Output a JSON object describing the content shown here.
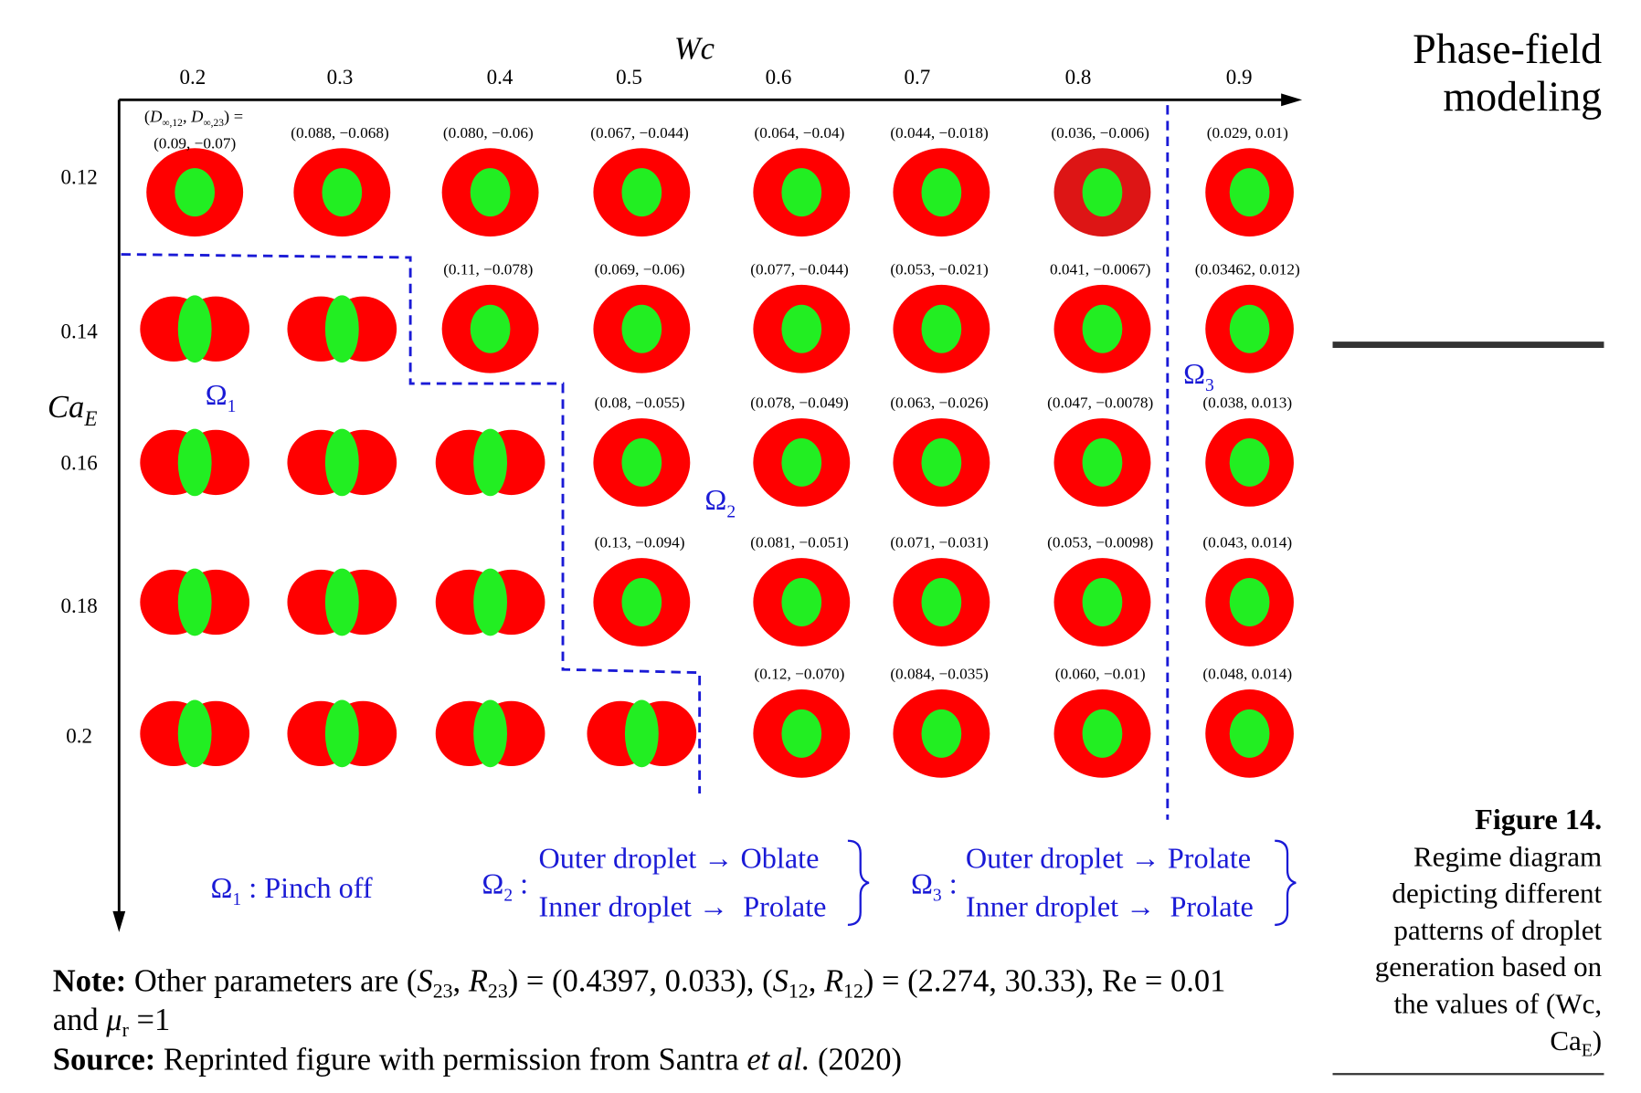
{
  "header": {
    "lines": [
      "Phase-field",
      "modeling"
    ]
  },
  "figure": {
    "x_label": "Wc",
    "y_label": {
      "main": "Ca",
      "sub": "E"
    },
    "x_ticks": [
      0.2,
      0.3,
      0.4,
      0.5,
      0.6,
      0.7,
      0.8,
      0.9
    ],
    "y_ticks": [
      0.12,
      0.14,
      0.16,
      0.18,
      0.2
    ],
    "coeff_header": [
      "(",
      "D",
      "∞,12",
      ", ",
      "D",
      "∞,23",
      ") ="
    ],
    "cells": [
      [
        "(0.09, −0.07)",
        "(0.088, −0.068)",
        "(0.080, −0.06)",
        "(0.067, −0.044)",
        "(0.064, −0.04)",
        "(0.044, −0.018)",
        "(0.036, −0.006)",
        "(0.029, 0.01)"
      ],
      [
        null,
        null,
        "(0.11, −0.078)",
        "(0.069, −0.06)",
        "(0.077, −0.044)",
        "(0.053, −0.021)",
        "0.041, −0.0067)",
        "(0.03462, 0.012)"
      ],
      [
        null,
        null,
        null,
        "(0.08, −0.055)",
        "(0.078, −0.049)",
        "(0.063, −0.026)",
        "(0.047, −0.0078)",
        "(0.038, 0.013)"
      ],
      [
        null,
        null,
        null,
        "(0.13, −0.094)",
        "(0.081, −0.051)",
        "(0.071, −0.031)",
        "(0.053, −0.0098)",
        "(0.043, 0.014)"
      ],
      [
        null,
        null,
        null,
        null,
        "(0.12, −0.070)",
        "(0.084, −0.035)",
        "(0.060, −0.01)",
        "(0.048, 0.014)"
      ]
    ],
    "regions": [
      {
        "symbol": "Ω",
        "sub": "1"
      },
      {
        "symbol": "Ω",
        "sub": "2"
      },
      {
        "symbol": "Ω",
        "sub": "3"
      }
    ],
    "legend": [
      {
        "symbol": "Ω",
        "sub": "1",
        "sep": " : ",
        "lines": [
          "Pinch off"
        ]
      },
      {
        "symbol": "Ω",
        "sub": "2",
        "sep": " :",
        "lines": [
          "Outer droplet → Oblate",
          "Inner droplet →  Prolate"
        ]
      },
      {
        "symbol": "Ω",
        "sub": "3",
        "sep": " :",
        "lines": [
          "Outer droplet → Prolate",
          "Inner droplet →  Prolate"
        ]
      }
    ]
  },
  "note": [
    "Note:",
    " Other parameters are (",
    "S",
    "23",
    ", ",
    "R",
    "23",
    ") = (0.4397, 0.033), (",
    "S",
    "12",
    ", ",
    "R",
    "12",
    ") = (2.274, 30.33), Re = 0.01",
    "and ",
    "μ",
    "r",
    " =1"
  ],
  "source": [
    "Source:",
    " Reprinted figure with permission from Santra ",
    "et al.",
    " (2020)"
  ],
  "caption": {
    "label": "Figure 14.",
    "lines": [
      "Regime diagram",
      "depicting different",
      "patterns of droplet",
      "generation based on",
      "the values of (Wc,"
    ],
    "last": [
      "Ca",
      "E",
      ")"
    ]
  }
}
